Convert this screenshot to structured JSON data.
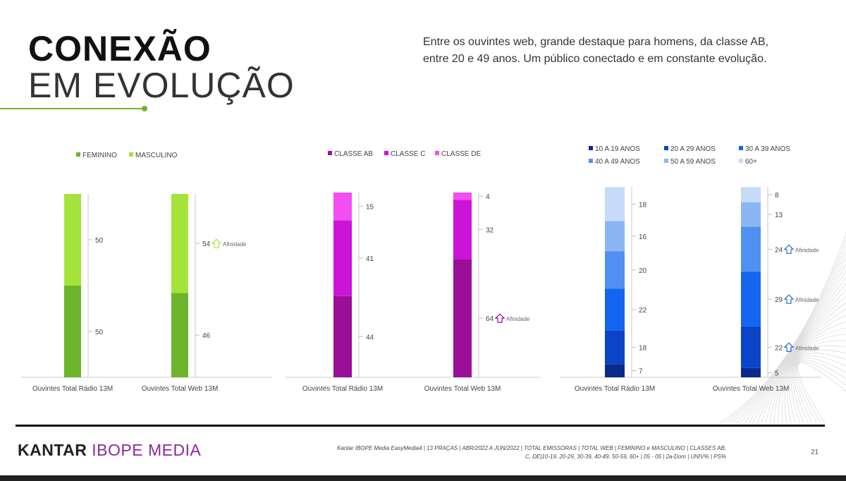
{
  "title": {
    "line1": "CONEXÃO",
    "line2": "EM EVOLUÇÃO"
  },
  "intro": "Entre os ouvintes web, grande destaque para homens, da classe AB, entre 20 e 49 anos. Um público conectado e em constante evolução.",
  "logo": {
    "part1": "KANTAR",
    "part2": "IBOPE MEDIA"
  },
  "source": "Kantar IBOPE Media EasyMedia4 | 13 PRAÇAS | ABR/2022 A JUN/2022 | TOTAL EMISSORAS | TOTAL WEB | FEMININO e MASCULINO | CLASSES AB, C, DE|10-19, 20-29, 30-39, 40-49, 50-59, 60+ | 05 - 05 | 2a-Dom | UNIV% | PS%",
  "page_number": "21",
  "colors": {
    "accent": "#6fb52c",
    "brand": "#8a2a9a"
  },
  "chart_data": [
    {
      "type": "bar",
      "stacked": true,
      "categories": [
        "Ouvintes Total Rádio 13M",
        "Ouvintes Total Web 13M"
      ],
      "series": [
        {
          "name": "FEMININO",
          "color": "#6cb52a",
          "values": [
            50,
            46
          ]
        },
        {
          "name": "MASCULINO",
          "color": "#a4e43a",
          "values": [
            50,
            54
          ]
        }
      ],
      "annotations": [
        {
          "category": 1,
          "series": 1,
          "text": "Afinidade",
          "icon": "up-arrow-icon"
        }
      ],
      "legend": "top",
      "ylim": [
        0,
        100
      ],
      "grid": false
    },
    {
      "type": "bar",
      "stacked": true,
      "categories": [
        "Ouvintes Total Rádio 13M",
        "Ouvintes Total Web 13M"
      ],
      "series": [
        {
          "name": "CLASSE AB",
          "color": "#9a0e9a",
          "values": [
            44,
            64
          ]
        },
        {
          "name": "CLASSE C",
          "color": "#cc14d6",
          "values": [
            41,
            32
          ]
        },
        {
          "name": "CLASSE DE",
          "color": "#f24ef2",
          "values": [
            15,
            4
          ]
        }
      ],
      "annotations": [
        {
          "category": 1,
          "series": 0,
          "text": "Afinidade",
          "icon": "up-arrow-icon"
        }
      ],
      "legend": "top",
      "ylim": [
        0,
        100
      ],
      "grid": false
    },
    {
      "type": "bar",
      "stacked": true,
      "categories": [
        "Ouvintes Total Rádio 13M",
        "Ouvintes Total Web 13M"
      ],
      "series": [
        {
          "name": "10 A 19 ANOS",
          "color": "#0a2a8c",
          "values": [
            7,
            5
          ]
        },
        {
          "name": "20 A 29 ANOS",
          "color": "#0a45c8",
          "values": [
            18,
            22
          ]
        },
        {
          "name": "30 A 39 ANOS",
          "color": "#1466f0",
          "values": [
            22,
            29
          ]
        },
        {
          "name": "40 A 49 ANOS",
          "color": "#4f90f0",
          "values": [
            20,
            24
          ]
        },
        {
          "name": "50 A 59 ANOS",
          "color": "#8ab6f4",
          "values": [
            16,
            13
          ]
        },
        {
          "name": "60+",
          "color": "#c6dbf8",
          "values": [
            18,
            8
          ]
        }
      ],
      "annotations": [
        {
          "category": 1,
          "series": 1,
          "text": "Afinidade",
          "icon": "up-arrow-icon"
        },
        {
          "category": 1,
          "series": 2,
          "text": "Afinidade",
          "icon": "up-arrow-icon"
        },
        {
          "category": 1,
          "series": 3,
          "text": "Afinidade",
          "icon": "up-arrow-icon"
        }
      ],
      "legend": "top",
      "ylim": [
        0,
        100
      ],
      "grid": false
    }
  ]
}
